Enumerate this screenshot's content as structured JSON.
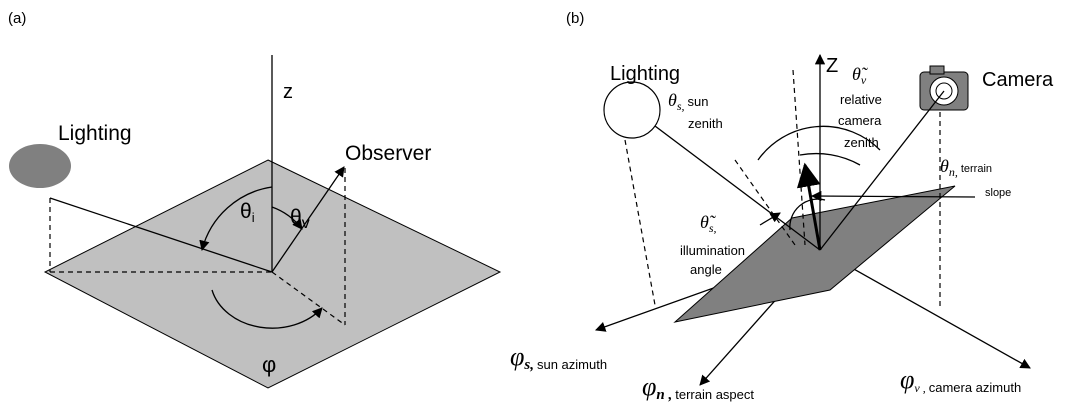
{
  "panel_a": {
    "label": "(a)",
    "axis_z": "z",
    "lighting": "Lighting",
    "observer": "Observer",
    "theta_i": {
      "symbol": "θ",
      "sub": "i"
    },
    "theta_v": {
      "symbol": "θ",
      "sub": "v"
    },
    "phi": "φ"
  },
  "panel_b": {
    "label": "(b)",
    "lighting": "Lighting",
    "axis_z": "Z",
    "camera": "Camera",
    "sun_zenith": {
      "symbol": "θ",
      "sub": "s,",
      "lines": [
        "sun",
        "zenith"
      ]
    },
    "camera_zenith": {
      "symbol": "θ̃",
      "sub": "v",
      "lines": [
        "relative",
        "camera",
        "zenith"
      ]
    },
    "terrain_slope": {
      "symbol": "θ",
      "sub": "n,",
      "lines": [
        "terrain",
        "slope"
      ]
    },
    "illumination": {
      "symbol": "θ̃",
      "sub": "s,",
      "lines": [
        "illumination",
        "angle"
      ]
    },
    "sun_azimuth": {
      "symbol": "φ",
      "sub": "s,",
      "note": "sun azimuth"
    },
    "terrain_aspect": {
      "symbol": "φ",
      "sub": "n ,",
      "note": "terrain aspect"
    },
    "camera_azimuth": {
      "symbol": "φ",
      "sub": "v ,",
      "note": "camera azimuth"
    }
  }
}
